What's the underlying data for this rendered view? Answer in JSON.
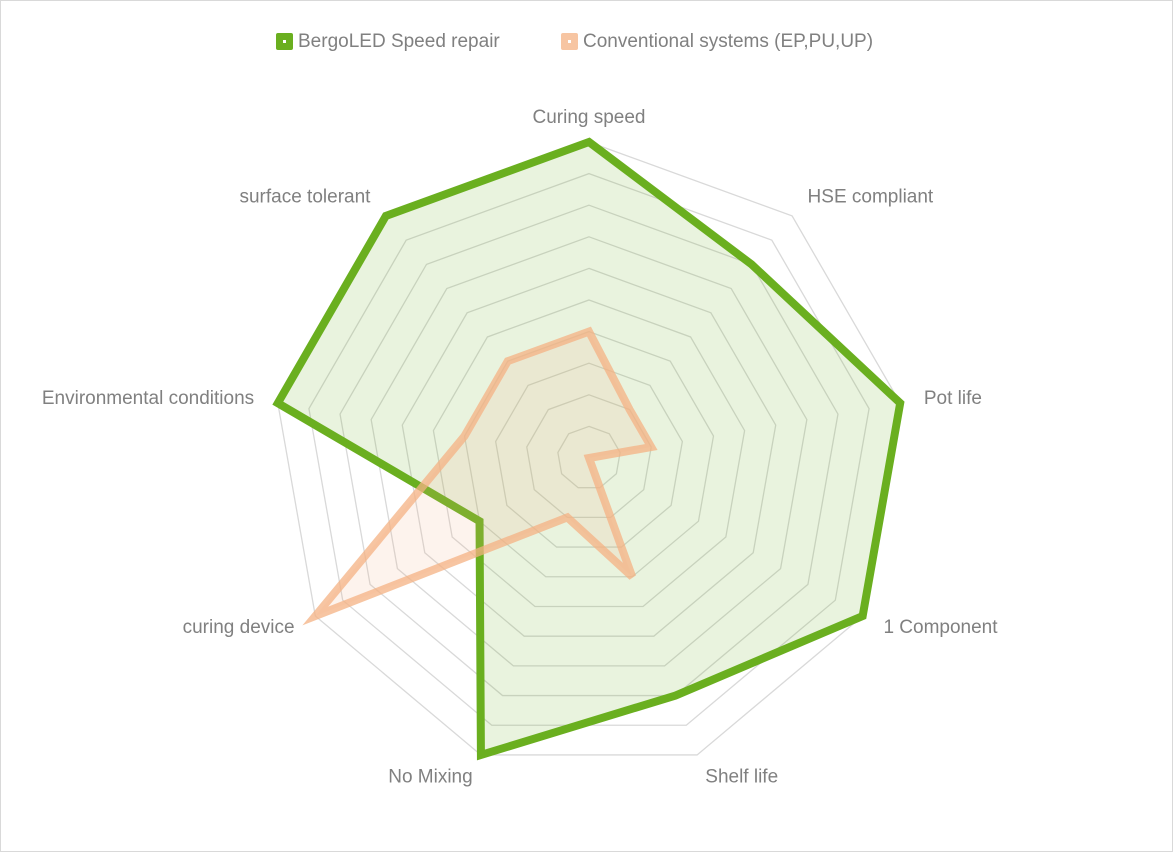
{
  "chart_data": {
    "type": "radar",
    "categories": [
      "Curing  speed",
      "HSE compliant",
      "Pot life",
      "1 Component",
      "Shelf life",
      "No Mixing",
      "curing device",
      "Environmental conditions",
      "surface tolerant"
    ],
    "series": [
      {
        "name": "BergoLED Speed repair",
        "color": "#6aaf1f",
        "values": [
          10,
          8,
          10,
          10,
          8,
          10,
          4,
          10,
          10
        ]
      },
      {
        "name": "Conventional systems (EP,PU,UP)",
        "color": "#f4b183",
        "values": [
          4,
          2,
          2,
          0,
          4,
          2,
          10,
          4,
          4
        ]
      }
    ],
    "rlim": [
      0,
      10
    ],
    "rticks": [
      1,
      2,
      3,
      4,
      5,
      6,
      7,
      8,
      9,
      10
    ],
    "grid": true,
    "legend": "top"
  }
}
